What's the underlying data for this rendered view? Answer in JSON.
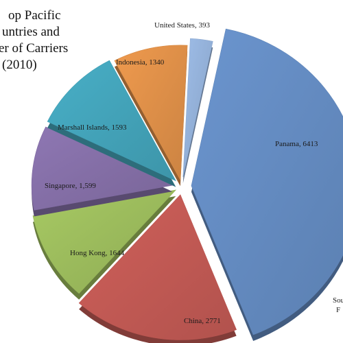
{
  "colors": {
    "united_states": "#9ebde8",
    "panama": "#6b95cf",
    "china": "#d0605a",
    "hong_kong": "#a7c963",
    "singapore": "#8e77b3",
    "marshall_islands": "#48afc7",
    "indonesia": "#ef9a4e"
  },
  "chart_data": {
    "type": "pie",
    "title_lines": [
      "op Pacific",
      "untries and",
      "er of Carriers",
      "(2010)"
    ],
    "slices": [
      {
        "key": "united_states",
        "label": "United States, 393",
        "value": 393
      },
      {
        "key": "panama",
        "label": "Panama, 6413",
        "value": 6413
      },
      {
        "key": "china",
        "label": "China, 2771",
        "value": 2771
      },
      {
        "key": "hong_kong",
        "label": "Hong Kong, 1644",
        "value": 1644
      },
      {
        "key": "singapore",
        "label": "Singapore, 1,599",
        "value": 1599
      },
      {
        "key": "marshall_islands",
        "label": "Marshall Islands, 1593",
        "value": 1593
      },
      {
        "key": "indonesia",
        "label": "Indonesia, 1340",
        "value": 1340
      }
    ],
    "source_lines": [
      "Sou",
      "F"
    ],
    "exploded": true,
    "style": "3d"
  }
}
